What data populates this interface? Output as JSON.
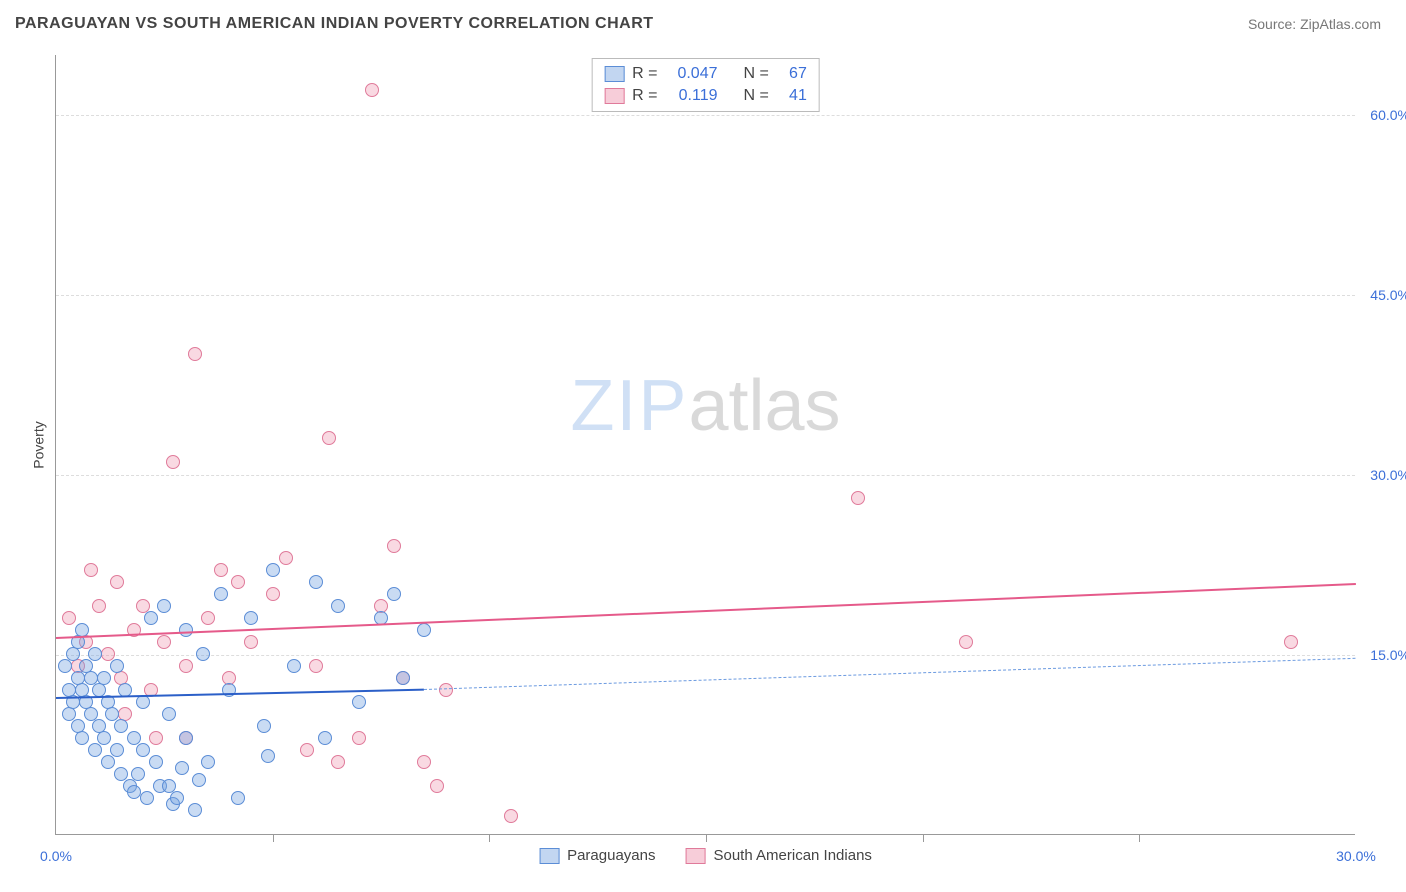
{
  "title": "PARAGUAYAN VS SOUTH AMERICAN INDIAN POVERTY CORRELATION CHART",
  "source": "Source: ZipAtlas.com",
  "ylabel": "Poverty",
  "watermark": {
    "zip": "ZIP",
    "atlas": "atlas"
  },
  "chart": {
    "type": "scatter",
    "xlim": [
      0,
      30
    ],
    "ylim": [
      0,
      65
    ],
    "ytick_labels": [
      "15.0%",
      "30.0%",
      "45.0%",
      "60.0%"
    ],
    "ytick_values": [
      15,
      30,
      45,
      60
    ],
    "xtick_labels": [
      "0.0%",
      "30.0%"
    ],
    "xtick_values": [
      0,
      30
    ],
    "xtick_minor": [
      5,
      10,
      15,
      20,
      25
    ],
    "grid_color": "#ddd",
    "axis_color": "#999",
    "background_color": "#ffffff",
    "marker_radius": 7,
    "series": {
      "blue": {
        "label": "Paraguayans",
        "color_fill": "rgba(120,165,225,0.4)",
        "color_stroke": "#5b8dd6",
        "points": [
          [
            0.2,
            14
          ],
          [
            0.3,
            12
          ],
          [
            0.3,
            10
          ],
          [
            0.4,
            15
          ],
          [
            0.4,
            11
          ],
          [
            0.5,
            13
          ],
          [
            0.5,
            9
          ],
          [
            0.5,
            16
          ],
          [
            0.6,
            12
          ],
          [
            0.6,
            8
          ],
          [
            0.7,
            14
          ],
          [
            0.7,
            11
          ],
          [
            0.8,
            13
          ],
          [
            0.8,
            10
          ],
          [
            0.9,
            7
          ],
          [
            0.9,
            15
          ],
          [
            1.0,
            12
          ],
          [
            1.0,
            9
          ],
          [
            1.1,
            8
          ],
          [
            1.1,
            13
          ],
          [
            1.2,
            6
          ],
          [
            1.2,
            11
          ],
          [
            1.3,
            10
          ],
          [
            1.4,
            7
          ],
          [
            1.5,
            5
          ],
          [
            1.5,
            9
          ],
          [
            1.6,
            12
          ],
          [
            1.7,
            4
          ],
          [
            1.8,
            8
          ],
          [
            1.9,
            5
          ],
          [
            2.0,
            11
          ],
          [
            2.0,
            7
          ],
          [
            2.1,
            3
          ],
          [
            2.2,
            18
          ],
          [
            2.3,
            6
          ],
          [
            2.4,
            4
          ],
          [
            2.5,
            19
          ],
          [
            2.6,
            10
          ],
          [
            2.7,
            2.5
          ],
          [
            2.8,
            3
          ],
          [
            3.0,
            17
          ],
          [
            3.0,
            8
          ],
          [
            3.2,
            2
          ],
          [
            3.4,
            15
          ],
          [
            3.5,
            6
          ],
          [
            3.8,
            20
          ],
          [
            4.0,
            12
          ],
          [
            4.2,
            3
          ],
          [
            4.5,
            18
          ],
          [
            4.8,
            9
          ],
          [
            5.0,
            22
          ],
          [
            5.5,
            14
          ],
          [
            6.0,
            21
          ],
          [
            6.2,
            8
          ],
          [
            6.5,
            19
          ],
          [
            7.0,
            11
          ],
          [
            7.5,
            18
          ],
          [
            7.8,
            20
          ],
          [
            8.0,
            13
          ],
          [
            8.5,
            17
          ],
          [
            4.9,
            6.5
          ],
          [
            3.3,
            4.5
          ],
          [
            2.9,
            5.5
          ],
          [
            1.4,
            14
          ],
          [
            0.6,
            17
          ],
          [
            1.8,
            3.5
          ],
          [
            2.6,
            4
          ]
        ],
        "trend": {
          "x1": 0,
          "y1": 11.5,
          "x2": 8.5,
          "y2": 12.2,
          "extend_x2": 30,
          "extend_y2": 14.8
        }
      },
      "pink": {
        "label": "South American Indians",
        "color_fill": "rgba(235,130,160,0.3)",
        "color_stroke": "#e07a9a",
        "points": [
          [
            0.3,
            18
          ],
          [
            0.5,
            14
          ],
          [
            0.7,
            16
          ],
          [
            0.8,
            22
          ],
          [
            1.0,
            19
          ],
          [
            1.2,
            15
          ],
          [
            1.4,
            21
          ],
          [
            1.5,
            13
          ],
          [
            1.8,
            17
          ],
          [
            2.0,
            19
          ],
          [
            2.2,
            12
          ],
          [
            2.5,
            16
          ],
          [
            2.7,
            31
          ],
          [
            3.0,
            14
          ],
          [
            3.2,
            40
          ],
          [
            3.5,
            18
          ],
          [
            3.8,
            22
          ],
          [
            4.0,
            13
          ],
          [
            4.5,
            16
          ],
          [
            5.0,
            20
          ],
          [
            5.3,
            23
          ],
          [
            5.8,
            7
          ],
          [
            6.0,
            14
          ],
          [
            6.3,
            33
          ],
          [
            6.5,
            6
          ],
          [
            7.0,
            8
          ],
          [
            7.3,
            62
          ],
          [
            7.5,
            19
          ],
          [
            7.8,
            24
          ],
          [
            8.0,
            13
          ],
          [
            8.5,
            6
          ],
          [
            8.8,
            4
          ],
          [
            9.0,
            12
          ],
          [
            10.5,
            1.5
          ],
          [
            18.5,
            28
          ],
          [
            21.0,
            16
          ],
          [
            28.5,
            16
          ],
          [
            1.6,
            10
          ],
          [
            2.3,
            8
          ],
          [
            4.2,
            21
          ],
          [
            3.0,
            8
          ]
        ],
        "trend": {
          "x1": 0,
          "y1": 16.5,
          "x2": 30,
          "y2": 21.0
        }
      }
    }
  },
  "stats_box": {
    "rows": [
      {
        "swatch": "blue",
        "r_label": "R =",
        "r_val": "0.047",
        "n_label": "N =",
        "n_val": "67"
      },
      {
        "swatch": "pink",
        "r_label": "R =",
        "r_val": "0.119",
        "n_label": "N =",
        "n_val": "41"
      }
    ]
  },
  "bottom_legend": [
    {
      "swatch": "blue",
      "label": "Paraguayans"
    },
    {
      "swatch": "pink",
      "label": "South American Indians"
    }
  ]
}
